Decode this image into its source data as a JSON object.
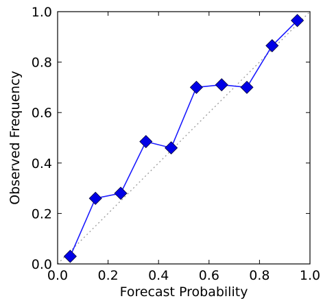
{
  "chart_data": {
    "type": "line",
    "title": "",
    "xlabel": "Forecast Probability",
    "ylabel": "Observed Frequency",
    "xlim": [
      0.0,
      1.0
    ],
    "ylim": [
      0.0,
      1.0
    ],
    "xticks": [
      "0.0",
      "0.2",
      "0.4",
      "0.6",
      "0.8",
      "1.0"
    ],
    "yticks": [
      "0.0",
      "0.2",
      "0.4",
      "0.6",
      "0.8",
      "1.0"
    ],
    "grid": false,
    "legend": "none",
    "series": [
      {
        "x": [
          0.05,
          0.15,
          0.25,
          0.35,
          0.45,
          0.55,
          0.65,
          0.75,
          0.85,
          0.95
        ],
        "y": [
          0.03,
          0.26,
          0.28,
          0.485,
          0.46,
          0.7,
          0.71,
          0.7,
          0.865,
          0.965
        ],
        "line_color": "#1a1aff",
        "marker": "diamond",
        "marker_color": "#0000e6"
      }
    ],
    "reference_line": {
      "x": [
        0.0,
        1.0
      ],
      "y": [
        0.0,
        1.0
      ],
      "style": "dotted",
      "color": "#999999"
    }
  }
}
